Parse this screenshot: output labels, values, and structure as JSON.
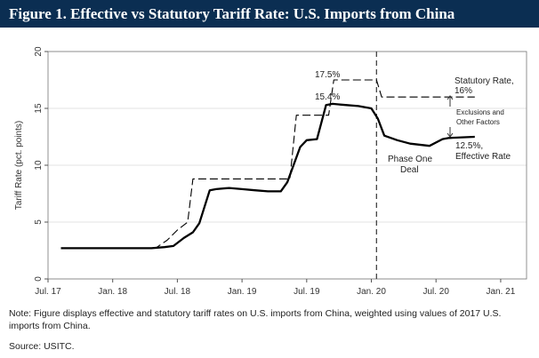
{
  "figure": {
    "title": "Figure 1. Effective vs Statutory Tariff Rate: U.S. Imports from China",
    "note": "Note: Figure displays effective and statutory tariff rates on U.S. imports from China, weighted using values of 2017 U.S. imports from China.",
    "source": "Source: USITC.",
    "background_color": "#0b2e52"
  },
  "chart_data": {
    "type": "line",
    "title": "",
    "xlabel": "",
    "ylabel": "Tariff Rate (pct. points)",
    "ylim": [
      0,
      20
    ],
    "yticks": [
      0,
      5,
      10,
      15,
      20
    ],
    "xlim": [
      2017.5,
      2021.2
    ],
    "xticks": [
      {
        "x": 2017.5,
        "label": "Jul. 17"
      },
      {
        "x": 2018.0,
        "label": "Jan. 18"
      },
      {
        "x": 2018.5,
        "label": "Jul. 18"
      },
      {
        "x": 2019.0,
        "label": "Jan. 19"
      },
      {
        "x": 2019.5,
        "label": "Jul. 19"
      },
      {
        "x": 2020.0,
        "label": "Jan. 20"
      },
      {
        "x": 2020.5,
        "label": "Jul. 20"
      },
      {
        "x": 2021.0,
        "label": "Jan. 21"
      }
    ],
    "grid": {
      "y": true,
      "x": false
    },
    "legend": "none",
    "series": [
      {
        "name": "Statutory Rate",
        "style": "dashed",
        "x": [
          2017.6,
          2018.33,
          2018.42,
          2018.5,
          2018.58,
          2018.62,
          2019.1,
          2019.15,
          2019.37,
          2019.42,
          2019.67,
          2019.71,
          2020.04,
          2020.08,
          2020.8
        ],
        "y": [
          2.7,
          2.7,
          3.4,
          4.3,
          5.0,
          8.8,
          8.8,
          8.8,
          8.8,
          14.4,
          14.4,
          17.5,
          17.5,
          16.0,
          16.0
        ]
      },
      {
        "name": "Effective Rate",
        "style": "solid",
        "x": [
          2017.6,
          2018.0,
          2018.3,
          2018.4,
          2018.47,
          2018.55,
          2018.62,
          2018.67,
          2018.75,
          2018.8,
          2018.9,
          2019.0,
          2019.1,
          2019.2,
          2019.3,
          2019.35,
          2019.45,
          2019.5,
          2019.58,
          2019.65,
          2019.7,
          2019.8,
          2019.9,
          2020.0,
          2020.05,
          2020.1,
          2020.2,
          2020.3,
          2020.45,
          2020.55,
          2020.6,
          2020.8
        ],
        "y": [
          2.7,
          2.7,
          2.7,
          2.8,
          2.9,
          3.6,
          4.1,
          4.9,
          7.8,
          7.9,
          8.0,
          7.9,
          7.8,
          7.7,
          7.7,
          8.5,
          11.6,
          12.2,
          12.3,
          15.3,
          15.4,
          15.3,
          15.2,
          15.0,
          14.1,
          12.6,
          12.2,
          11.9,
          11.7,
          12.3,
          12.4,
          12.5
        ]
      }
    ],
    "vline": {
      "x": 2020.04,
      "style": "dashed",
      "label_line1": "Phase One",
      "label_line2": "Deal"
    },
    "annotations": {
      "statutory_peak": "17.5%",
      "effective_peak": "15.4%",
      "statutory_rate_line1": "Statutory Rate,",
      "statutory_rate_line2": "16%",
      "exclusions_line1": "Exclusions and",
      "exclusions_line2": "Other Factors",
      "effective_rate_line1": "12.5%,",
      "effective_rate_line2": "Effective Rate"
    }
  }
}
